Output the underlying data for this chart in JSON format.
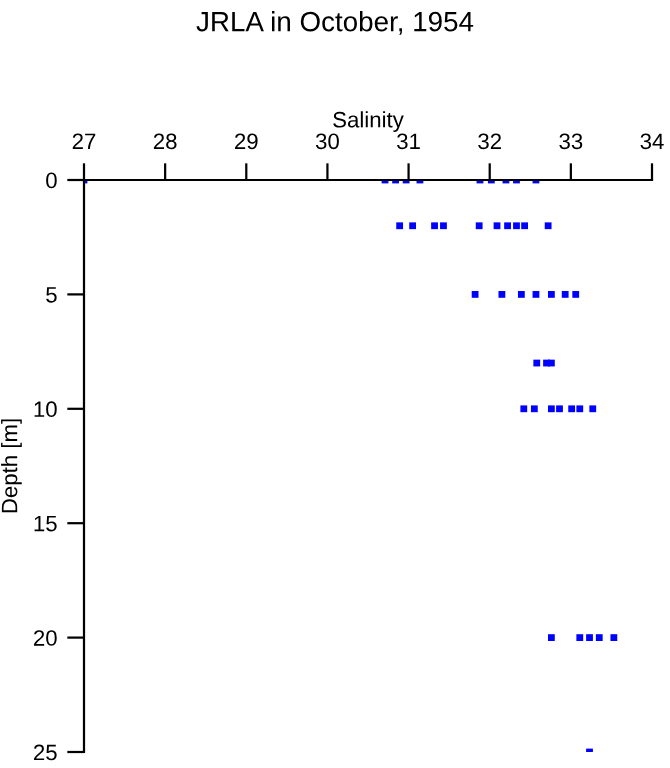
{
  "chart_data": {
    "type": "scatter",
    "title": "JRLA in October, 1954",
    "xlabel": "Salinity",
    "ylabel": "Depth [m]",
    "xlim": [
      27,
      34
    ],
    "xticks": [
      27,
      28,
      29,
      30,
      31,
      32,
      33,
      34
    ],
    "ylim": [
      25,
      0
    ],
    "yticks": [
      0,
      5,
      10,
      15,
      20,
      25
    ],
    "marker": "square",
    "grid": false,
    "legend": false,
    "series": [
      {
        "color": "#0000ff",
        "x": [
          27.0,
          30.71,
          30.84,
          30.97,
          31.14,
          31.88,
          32.02,
          32.2,
          32.33,
          32.57
        ],
        "values": [
          0,
          0,
          0,
          0,
          0,
          0,
          0,
          0,
          0,
          0
        ]
      },
      {
        "color": "#0000ff",
        "x": [
          30.89,
          31.05,
          31.32,
          31.43,
          31.87,
          32.09,
          32.22,
          32.33,
          32.43,
          32.72
        ],
        "values": [
          2,
          2,
          2,
          2,
          2,
          2,
          2,
          2,
          2,
          2
        ]
      },
      {
        "color": "#0000ff",
        "x": [
          31.82,
          32.15,
          32.39,
          32.57,
          32.76,
          32.93,
          33.06
        ],
        "values": [
          5,
          5,
          5,
          5,
          5,
          5,
          5
        ]
      },
      {
        "color": "#0000ff",
        "x": [
          32.58,
          32.7,
          32.76
        ],
        "values": [
          8,
          8,
          8
        ]
      },
      {
        "color": "#0000ff",
        "x": [
          32.42,
          32.55,
          32.76,
          32.86,
          33.01,
          33.11,
          33.27
        ],
        "values": [
          10,
          10,
          10,
          10,
          10,
          10,
          10
        ]
      },
      {
        "color": "#0000ff",
        "x": [
          32.76,
          33.11,
          33.23,
          33.35,
          33.53
        ],
        "values": [
          20,
          20,
          20,
          20,
          20
        ]
      },
      {
        "color": "#0000ff",
        "x": [
          33.23
        ],
        "values": [
          25
        ]
      }
    ]
  }
}
